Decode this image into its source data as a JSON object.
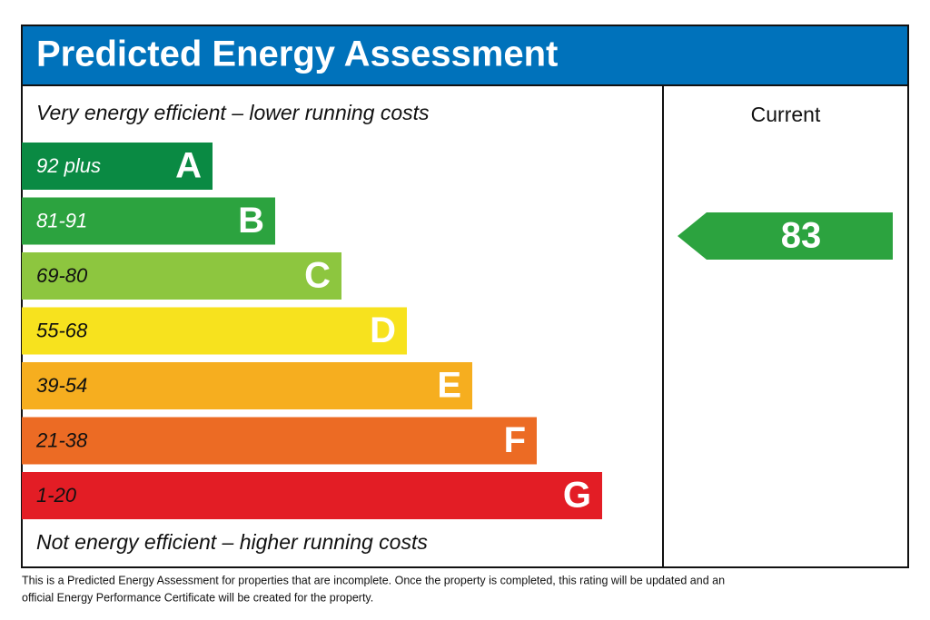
{
  "header": {
    "title": "Predicted Energy Assessment"
  },
  "scale": {
    "top_label": "Very energy efficient – lower running costs",
    "bottom_label": "Not energy efficient – higher running costs",
    "bands": [
      {
        "range": "92 plus",
        "letter": "A",
        "color": "#0a8a43"
      },
      {
        "range": "81-91",
        "letter": "B",
        "color": "#2ca33f"
      },
      {
        "range": "69-80",
        "letter": "C",
        "color": "#8dc63f"
      },
      {
        "range": "55-68",
        "letter": "D",
        "color": "#f7e21e"
      },
      {
        "range": "39-54",
        "letter": "E",
        "color": "#f6ae1f"
      },
      {
        "range": "21-38",
        "letter": "F",
        "color": "#ec6b24"
      },
      {
        "range": "1-20",
        "letter": "G",
        "color": "#e31d25"
      }
    ]
  },
  "current": {
    "heading": "Current",
    "rating": 83,
    "color": "#2ca33f"
  },
  "footnote": [
    "This is a Predicted Energy Assessment for properties that are incomplete. Once the property is completed, this rating will be updated and an",
    "official Energy Performance Certificate will be created for the property."
  ]
}
